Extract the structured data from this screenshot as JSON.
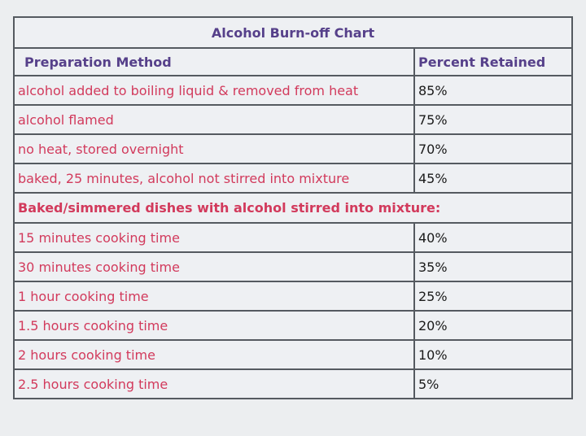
{
  "table": {
    "title": "Alcohol Burn-off Chart",
    "header": [
      "Preparation Method",
      "Percent Retained"
    ],
    "rows": [
      [
        "alcohol added to boiling liquid & removed from heat",
        "85%"
      ],
      [
        "alcohol flamed",
        "75%"
      ],
      [
        "no heat, stored overnight",
        "70%"
      ],
      [
        "baked, 25 minutes, alcohol not stirred into mixture",
        "45%"
      ]
    ],
    "subsection": {
      "title": "Baked/simmered dishes with alcohol stirred into mixture:",
      "rows": [
        [
          "15 minutes cooking time",
          "40%"
        ],
        [
          "30 minutes cooking time",
          "35%"
        ],
        [
          "1 hour cooking time",
          "25%"
        ],
        [
          "1.5 hours cooking time",
          "20%"
        ],
        [
          "2 hours cooking time",
          "10%"
        ],
        [
          "2.5 hours cooking time",
          "5%"
        ]
      ]
    }
  }
}
